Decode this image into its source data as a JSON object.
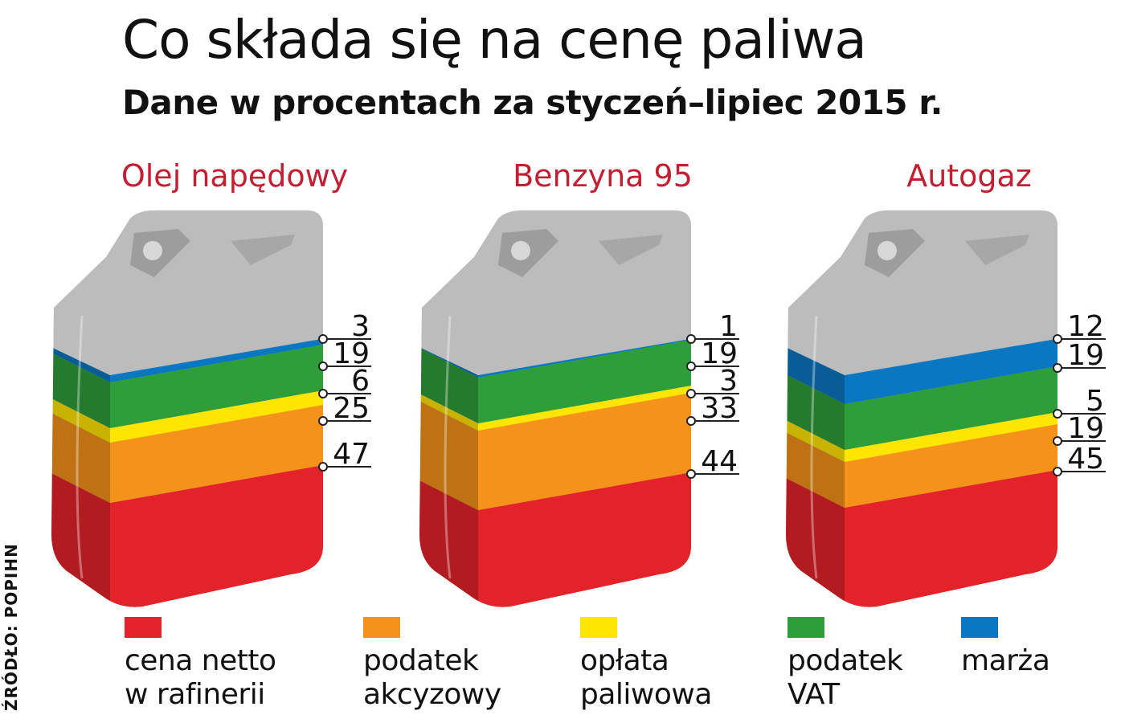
{
  "title": "Co składa się na cenę paliwa",
  "subtitle": "Dane w procentach za styczeń–lipiec 2015 r.",
  "source": "ŹRÓDŁO: POPIHN",
  "colors": {
    "cena_netto": "#e42229",
    "akcyza": "#f49219",
    "oplata": "#ffe600",
    "vat": "#2e9e3a",
    "marza": "#0a77c2",
    "title_red": "#c22032",
    "can_grey": "#bcbcbc"
  },
  "legend": [
    {
      "key": "cena_netto",
      "label": "cena netto\nw rafinerii"
    },
    {
      "key": "akcyza",
      "label": "podatek\nakcyzowy"
    },
    {
      "key": "oplata",
      "label": "opłata\npaliwowa"
    },
    {
      "key": "vat",
      "label": "podatek\nVAT"
    },
    {
      "key": "marza",
      "label": "marża"
    }
  ],
  "chart_data": {
    "type": "bar",
    "stacked": true,
    "unit": "%",
    "categories": [
      "Olej napędowy",
      "Benzyna 95",
      "Autogaz"
    ],
    "series": [
      {
        "key": "cena_netto",
        "name": "cena netto w rafinerii",
        "values": [
          47,
          44,
          45
        ]
      },
      {
        "key": "akcyza",
        "name": "podatek akcyzowy",
        "values": [
          25,
          33,
          19
        ]
      },
      {
        "key": "oplata",
        "name": "opłata paliwowa",
        "values": [
          6,
          3,
          5
        ]
      },
      {
        "key": "vat",
        "name": "podatek VAT",
        "values": [
          19,
          19,
          19
        ]
      },
      {
        "key": "marza",
        "name": "marża",
        "values": [
          3,
          1,
          12
        ]
      }
    ],
    "labels_top_to_bottom": [
      [
        "3",
        "19",
        "6",
        "25",
        "47"
      ],
      [
        "1",
        "19",
        "3",
        "33",
        "44"
      ],
      [
        "12",
        "19",
        "5",
        "19",
        "45"
      ]
    ]
  }
}
